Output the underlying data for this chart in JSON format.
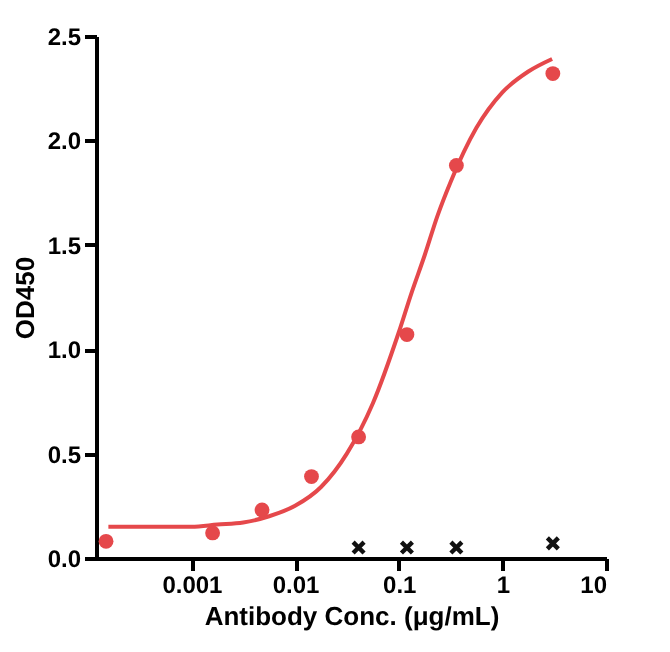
{
  "chart_data": {
    "type": "scatter",
    "xlabel": "Antibody Conc. (μg/mL)",
    "ylabel": "OD450",
    "log": "x",
    "grid": false,
    "xlim": [
      0.00012,
      10
    ],
    "xticks": [
      0.001,
      0.01,
      0.1,
      1,
      10
    ],
    "ylim": [
      0,
      2.5
    ],
    "yticks": [
      {
        "value": 0,
        "label": "0.0"
      },
      0.5,
      {
        "value": 1,
        "label": "1.0"
      },
      1.5,
      {
        "value": 2,
        "label": "2.0"
      },
      2.5
    ],
    "series": [
      {
        "type": "line",
        "color": "#e5484b",
        "marker": "none",
        "x": [
          0.000158,
          0.000316,
          0.000562,
          0.001,
          0.00178,
          0.00316,
          0.00562,
          0.01,
          0.0178,
          0.0316,
          0.0562,
          0.1,
          0.133,
          0.178,
          0.237,
          0.316,
          0.562,
          1,
          1.78,
          3.02
        ],
        "values": [
          0.15,
          0.15,
          0.15,
          0.15,
          0.16,
          0.17,
          0.2,
          0.25,
          0.34,
          0.5,
          0.74,
          1.08,
          1.27,
          1.45,
          1.64,
          1.8,
          2.06,
          2.23,
          2.33,
          2.39
        ]
      },
      {
        "type": "scatter",
        "color": "#e5484b",
        "marker": "circle",
        "x": [
          0.00015,
          0.0016,
          0.0048,
          0.0144,
          0.041,
          0.12,
          0.36,
          3.07
        ],
        "values": [
          0.08,
          0.12,
          0.23,
          0.39,
          0.58,
          1.07,
          1.88,
          2.32
        ]
      },
      {
        "type": "scatter",
        "color": "#111111",
        "marker": "cross",
        "x": [
          0.041,
          0.12,
          0.36,
          3.07
        ],
        "values": [
          0.05,
          0.05,
          0.05,
          0.07
        ]
      }
    ]
  }
}
